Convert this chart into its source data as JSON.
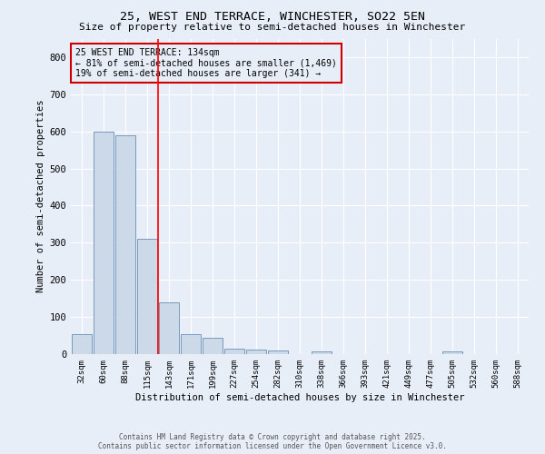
{
  "title_line1": "25, WEST END TERRACE, WINCHESTER, SO22 5EN",
  "title_line2": "Size of property relative to semi-detached houses in Winchester",
  "xlabel": "Distribution of semi-detached houses by size in Winchester",
  "ylabel": "Number of semi-detached properties",
  "categories": [
    "32sqm",
    "60sqm",
    "88sqm",
    "115sqm",
    "143sqm",
    "171sqm",
    "199sqm",
    "227sqm",
    "254sqm",
    "282sqm",
    "310sqm",
    "338sqm",
    "366sqm",
    "393sqm",
    "421sqm",
    "449sqm",
    "477sqm",
    "505sqm",
    "532sqm",
    "560sqm",
    "588sqm"
  ],
  "values": [
    55,
    600,
    590,
    310,
    140,
    55,
    45,
    15,
    12,
    10,
    0,
    8,
    0,
    0,
    0,
    0,
    0,
    7,
    0,
    0,
    0
  ],
  "bar_color": "#ccd9e8",
  "bar_edge_color": "#7799bb",
  "red_line_x": 3.5,
  "annotation_title": "25 WEST END TERRACE: 134sqm",
  "annotation_line1": "← 81% of semi-detached houses are smaller (1,469)",
  "annotation_line2": "19% of semi-detached houses are larger (341) →",
  "annotation_box_color": "#cc0000",
  "ylim": [
    0,
    850
  ],
  "yticks": [
    0,
    100,
    200,
    300,
    400,
    500,
    600,
    700,
    800
  ],
  "background_color": "#e8eef8",
  "grid_color": "#ffffff",
  "footer_line1": "Contains HM Land Registry data © Crown copyright and database right 2025.",
  "footer_line2": "Contains public sector information licensed under the Open Government Licence v3.0."
}
